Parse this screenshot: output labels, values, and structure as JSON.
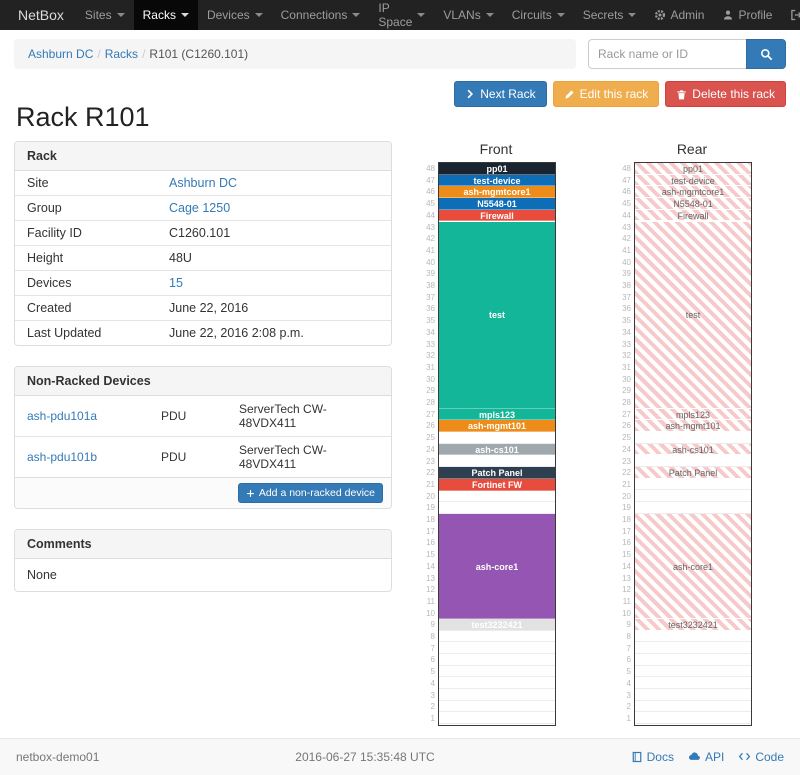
{
  "navbar": {
    "brand": "NetBox",
    "items": [
      {
        "label": "Sites"
      },
      {
        "label": "Racks",
        "active": true
      },
      {
        "label": "Devices"
      },
      {
        "label": "Connections"
      },
      {
        "label": "IP Space"
      },
      {
        "label": "VLANs"
      },
      {
        "label": "Circuits"
      },
      {
        "label": "Secrets"
      }
    ],
    "right_items": [
      {
        "label": "Admin",
        "icon": "gear"
      },
      {
        "label": "Profile",
        "icon": "user"
      },
      {
        "label": "Log out",
        "icon": "logout"
      }
    ]
  },
  "breadcrumb": [
    "Ashburn DC",
    "Racks",
    "R101 (C1260.101)"
  ],
  "search": {
    "placeholder": "Rack name or ID",
    "icon": "search"
  },
  "actions": [
    {
      "label": "Next Rack",
      "style": "primary",
      "icon": "chevron-right"
    },
    {
      "label": "Edit this rack",
      "style": "warning",
      "icon": "pencil"
    },
    {
      "label": "Delete this rack",
      "style": "danger",
      "icon": "trash"
    }
  ],
  "page_title": "Rack R101",
  "rack_info": {
    "title": "Rack",
    "rows": [
      {
        "label": "Site",
        "value": "Ashburn DC",
        "link": true
      },
      {
        "label": "Group",
        "value": "Cage 1250",
        "link": true
      },
      {
        "label": "Facility ID",
        "value": "C1260.101"
      },
      {
        "label": "Height",
        "value": "48U"
      },
      {
        "label": "Devices",
        "value": "15",
        "link": true
      },
      {
        "label": "Created",
        "value": "June 22, 2016"
      },
      {
        "label": "Last Updated",
        "value": "June 22, 2016 2:08 p.m."
      }
    ]
  },
  "non_racked": {
    "title": "Non-Racked Devices",
    "rows": [
      {
        "name": "ash-pdu101a",
        "type": "PDU",
        "model": "ServerTech CW-48VDX411"
      },
      {
        "name": "ash-pdu101b",
        "type": "PDU",
        "model": "ServerTech CW-48VDX411"
      }
    ],
    "add_button": "Add a non-racked device"
  },
  "comments": {
    "title": "Comments",
    "body": "None"
  },
  "elevations": {
    "units_total": 48,
    "front": {
      "title": "Front",
      "devices": [
        {
          "name": "pp01",
          "u": 48,
          "h": 1,
          "color": "#1a2430"
        },
        {
          "name": "test-device",
          "u": 47,
          "h": 1,
          "color": "#0d6db7"
        },
        {
          "name": "ash-mgmtcore1",
          "u": 46,
          "h": 1,
          "color": "#ee8c1a"
        },
        {
          "name": "N5548-01",
          "u": 45,
          "h": 1,
          "color": "#0d6db7"
        },
        {
          "name": "Firewall",
          "u": 44,
          "h": 1,
          "color": "#e84c3d"
        },
        {
          "name": "test",
          "u": 43,
          "h": 16,
          "color": "#13b698"
        },
        {
          "name": "mpls123",
          "u": 27,
          "h": 1,
          "color": "#13b698"
        },
        {
          "name": "ash-mgmt101",
          "u": 26,
          "h": 1,
          "color": "#ee8c1a"
        },
        {
          "name": "ash-cs101",
          "u": 24,
          "h": 1,
          "color": "#9fa8ad"
        },
        {
          "name": "Patch Panel",
          "u": 22,
          "h": 1,
          "color": "#2e3f50"
        },
        {
          "name": "Fortinet FW",
          "u": 21,
          "h": 1,
          "color": "#e84c3d"
        },
        {
          "name": "ash-core1",
          "u": 18,
          "h": 9,
          "color": "#9455b3"
        },
        {
          "name": "test3232421",
          "u": 9,
          "h": 1,
          "color": "#e2e2e2",
          "text_color": "#ffffff"
        }
      ]
    },
    "rear": {
      "title": "Rear",
      "hatch_color": "#f6caca",
      "devices": [
        {
          "name": "pp01",
          "u": 48,
          "h": 1
        },
        {
          "name": "test-device",
          "u": 47,
          "h": 1
        },
        {
          "name": "ash-mgmtcore1",
          "u": 46,
          "h": 1
        },
        {
          "name": "N5548-01",
          "u": 45,
          "h": 1
        },
        {
          "name": "Firewall",
          "u": 44,
          "h": 1
        },
        {
          "name": "test",
          "u": 43,
          "h": 16
        },
        {
          "name": "mpls123",
          "u": 27,
          "h": 1
        },
        {
          "name": "ash-mgmt101",
          "u": 26,
          "h": 1
        },
        {
          "name": "ash-cs101",
          "u": 24,
          "h": 1
        },
        {
          "name": "Patch Panel",
          "u": 22,
          "h": 1
        },
        {
          "name": "ash-core1",
          "u": 18,
          "h": 9
        },
        {
          "name": "test3232421",
          "u": 9,
          "h": 1
        }
      ]
    }
  },
  "footer": {
    "hostname": "netbox-demo01",
    "timestamp": "2016-06-27 15:35:48 UTC",
    "links": [
      {
        "label": "Docs",
        "icon": "book"
      },
      {
        "label": "API",
        "icon": "cloud"
      },
      {
        "label": "Code",
        "icon": "code"
      }
    ]
  }
}
